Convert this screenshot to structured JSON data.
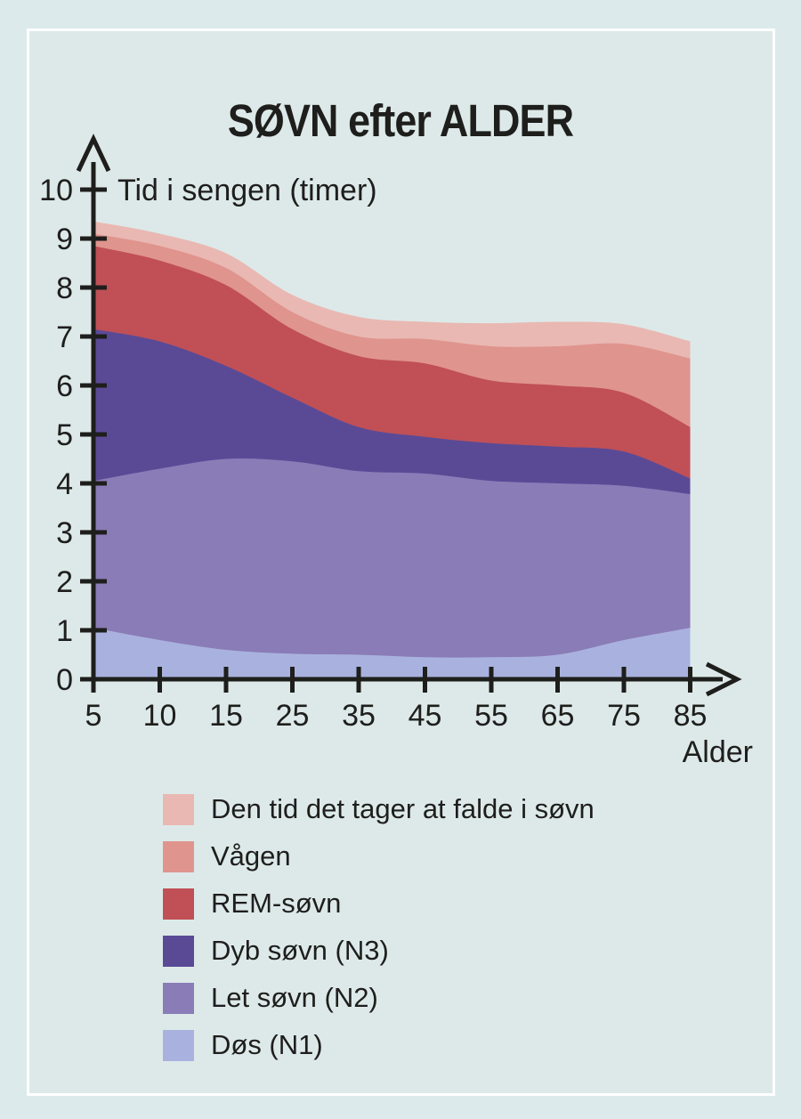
{
  "page": {
    "title": "SØVN efter ALDER"
  },
  "chart_data": {
    "type": "area",
    "stacked": true,
    "title": "SØVN efter ALDER",
    "xlabel": "Alder",
    "ylabel": "Tid i sengen (timer)",
    "x_categories": [
      5,
      10,
      15,
      25,
      35,
      45,
      55,
      65,
      75,
      85
    ],
    "y_ticks": [
      0,
      1,
      2,
      3,
      4,
      5,
      6,
      7,
      8,
      9,
      10
    ],
    "ylim": [
      0,
      10
    ],
    "grid": false,
    "legend_position": "bottom",
    "series": [
      {
        "name": "Døs (N1)",
        "color": "#a9b2de",
        "values": [
          1.05,
          0.8,
          0.6,
          0.52,
          0.5,
          0.45,
          0.45,
          0.5,
          0.8,
          1.05
        ]
      },
      {
        "name": "Let søvn (N2)",
        "color": "#8a7cb7",
        "values": [
          3.0,
          3.5,
          3.9,
          3.93,
          3.75,
          3.75,
          3.6,
          3.5,
          3.15,
          2.73
        ]
      },
      {
        "name": "Dyb søvn (N3)",
        "color": "#5a4a96",
        "values": [
          3.1,
          2.6,
          1.9,
          1.3,
          0.9,
          0.75,
          0.77,
          0.75,
          0.7,
          0.32
        ]
      },
      {
        "name": "REM-søvn",
        "color": "#c05056",
        "values": [
          1.7,
          1.65,
          1.65,
          1.4,
          1.45,
          1.5,
          1.28,
          1.25,
          1.2,
          1.05
        ]
      },
      {
        "name": "Vågen",
        "color": "#e0948e",
        "values": [
          0.25,
          0.3,
          0.35,
          0.35,
          0.4,
          0.5,
          0.7,
          0.8,
          1.0,
          1.4
        ]
      },
      {
        "name": "Den tid det tager at falde i søvn",
        "color": "#e9b8b2",
        "values": [
          0.25,
          0.25,
          0.3,
          0.35,
          0.4,
          0.35,
          0.47,
          0.5,
          0.4,
          0.35
        ]
      }
    ]
  },
  "colors": {
    "background": "#dceaec",
    "frame": "#ffffff",
    "text": "#1e1e1c",
    "axis": "#1e1e1c"
  }
}
